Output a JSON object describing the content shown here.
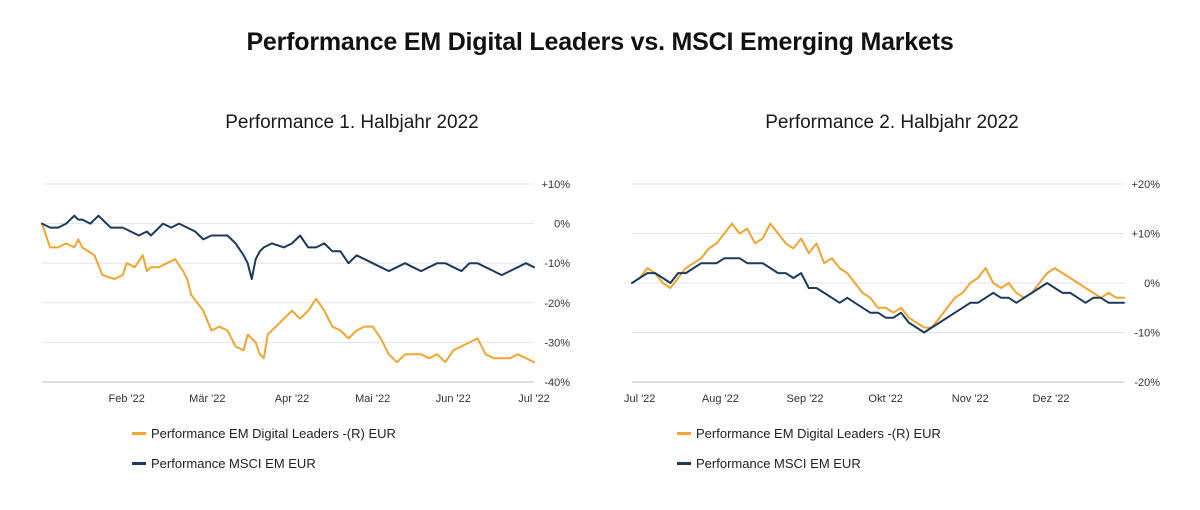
{
  "title": "Performance EM Digital Leaders vs. MSCI Emerging Markets",
  "colors": {
    "em_digital": "#f0a630",
    "msci": "#1b3a5e",
    "grid": "#e3e3e3"
  },
  "legend": [
    {
      "label": "Performance EM Digital Leaders -(R) EUR"
    },
    {
      "label": "Performance MSCI EM EUR"
    }
  ],
  "chart_data": [
    {
      "type": "line",
      "title": "Performance 1. Halbjahr 2022",
      "x_tick_labels": [
        "Feb '22",
        "Mär '22",
        "Apr '22",
        "Mai '22",
        "Jun '22",
        "Jul '22"
      ],
      "x_tick_positions": [
        21,
        41,
        62,
        82,
        102,
        122
      ],
      "xlim": [
        0,
        122
      ],
      "y_tick_labels": [
        "+10%",
        "0%",
        "-10%",
        "-20%",
        "-30%",
        "-40%"
      ],
      "y_tick_values": [
        10,
        0,
        -10,
        -20,
        -30,
        -40
      ],
      "ylim": [
        -40,
        10
      ],
      "y_axis_side": "right",
      "grid": true,
      "series": [
        {
          "name": "Performance EM Digital Leaders -(R) EUR",
          "x": [
            0,
            2,
            4,
            6,
            8,
            9,
            10,
            13,
            15,
            18,
            20,
            21,
            23,
            25,
            26,
            27,
            29,
            31,
            33,
            35,
            36,
            37,
            40,
            42,
            44,
            46,
            48,
            50,
            51,
            53,
            54,
            55,
            56,
            58,
            60,
            62,
            64,
            66,
            68,
            70,
            72,
            74,
            76,
            78,
            80,
            82,
            84,
            86,
            88,
            90,
            92,
            94,
            96,
            98,
            100,
            102,
            104,
            106,
            108,
            110,
            112,
            114,
            116,
            118,
            120,
            122
          ],
          "y": [
            0,
            -6,
            -6,
            -5,
            -6,
            -4,
            -6,
            -8,
            -13,
            -14,
            -13,
            -10,
            -11,
            -8,
            -12,
            -11,
            -11,
            -10,
            -9,
            -12,
            -14,
            -18,
            -22,
            -27,
            -26,
            -27,
            -31,
            -32,
            -28,
            -30,
            -33,
            -34,
            -28,
            -26,
            -24,
            -22,
            -24,
            -22,
            -19,
            -22,
            -26,
            -27,
            -29,
            -27,
            -26,
            -26,
            -29,
            -33,
            -35,
            -33,
            -33,
            -33,
            -34,
            -33,
            -35,
            -32,
            -31,
            -30,
            -29,
            -33,
            -34,
            -34,
            -34,
            -33,
            -34,
            -35
          ]
        },
        {
          "name": "Performance MSCI EM EUR",
          "x": [
            0,
            2,
            4,
            6,
            8,
            9,
            10,
            12,
            14,
            15,
            17,
            18,
            20,
            22,
            24,
            26,
            27,
            29,
            30,
            32,
            34,
            36,
            38,
            40,
            42,
            44,
            46,
            48,
            50,
            51,
            52,
            53,
            54,
            55,
            57,
            60,
            62,
            64,
            66,
            68,
            70,
            72,
            74,
            76,
            78,
            80,
            82,
            84,
            86,
            88,
            90,
            92,
            94,
            96,
            98,
            100,
            102,
            104,
            106,
            108,
            110,
            112,
            114,
            116,
            118,
            120,
            122
          ],
          "y": [
            0,
            -1,
            -1,
            0,
            2,
            1,
            1,
            0,
            2,
            1,
            -1,
            -1,
            -1,
            -2,
            -3,
            -2,
            -3,
            -1,
            0,
            -1,
            0,
            -1,
            -2,
            -4,
            -3,
            -3,
            -3,
            -5,
            -8,
            -10,
            -14,
            -9,
            -7,
            -6,
            -5,
            -6,
            -5,
            -3,
            -6,
            -6,
            -5,
            -7,
            -7,
            -10,
            -8,
            -9,
            -10,
            -11,
            -12,
            -11,
            -10,
            -11,
            -12,
            -11,
            -10,
            -10,
            -11,
            -12,
            -10,
            -10,
            -11,
            -12,
            -13,
            -12,
            -11,
            -10,
            -11
          ]
        }
      ]
    },
    {
      "type": "line",
      "title": "Performance 2. Halbjahr 2022",
      "x_tick_labels": [
        "Jul '22",
        "Aug '22",
        "Sep '22",
        "Okt '22",
        "Nov '22",
        "Dez '22"
      ],
      "x_tick_positions": [
        2,
        23,
        45,
        66,
        88,
        109
      ],
      "xlim": [
        0,
        128
      ],
      "y_tick_labels": [
        "+20%",
        "+10%",
        "0%",
        "-10%",
        "-20%"
      ],
      "y_tick_values": [
        20,
        10,
        0,
        -10,
        -20
      ],
      "ylim": [
        -20,
        20
      ],
      "y_axis_side": "right",
      "grid": true,
      "series": [
        {
          "name": "Performance EM Digital Leaders -(R) EUR",
          "x": [
            0,
            2,
            4,
            6,
            8,
            10,
            12,
            14,
            16,
            18,
            20,
            22,
            24,
            26,
            28,
            30,
            32,
            34,
            36,
            38,
            40,
            42,
            44,
            46,
            48,
            50,
            52,
            54,
            56,
            58,
            60,
            62,
            64,
            66,
            68,
            70,
            72,
            74,
            76,
            78,
            80,
            82,
            84,
            86,
            88,
            90,
            92,
            94,
            96,
            98,
            100,
            102,
            104,
            106,
            108,
            110,
            112,
            114,
            116,
            118,
            120,
            122,
            124,
            126,
            128
          ],
          "y": [
            0,
            1,
            3,
            2,
            0,
            -1,
            1,
            3,
            4,
            5,
            7,
            8,
            10,
            12,
            10,
            11,
            8,
            9,
            12,
            10,
            8,
            7,
            9,
            6,
            8,
            4,
            5,
            3,
            2,
            0,
            -2,
            -3,
            -5,
            -5,
            -6,
            -5,
            -7,
            -8,
            -9,
            -9,
            -7,
            -5,
            -3,
            -2,
            0,
            1,
            3,
            0,
            -1,
            0,
            -2,
            -3,
            -2,
            0,
            2,
            3,
            2,
            1,
            0,
            -1,
            -2,
            -3,
            -2,
            -3,
            -3
          ]
        },
        {
          "name": "Performance MSCI EM EUR",
          "x": [
            0,
            2,
            4,
            6,
            8,
            10,
            12,
            14,
            16,
            18,
            20,
            22,
            24,
            26,
            28,
            30,
            32,
            34,
            36,
            38,
            40,
            42,
            44,
            46,
            48,
            50,
            52,
            54,
            56,
            58,
            60,
            62,
            64,
            66,
            68,
            70,
            72,
            74,
            76,
            78,
            80,
            82,
            84,
            86,
            88,
            90,
            92,
            94,
            96,
            98,
            100,
            102,
            104,
            106,
            108,
            110,
            112,
            114,
            116,
            118,
            120,
            122,
            124,
            126,
            128
          ],
          "y": [
            0,
            1,
            2,
            2,
            1,
            0,
            2,
            2,
            3,
            4,
            4,
            4,
            5,
            5,
            5,
            4,
            4,
            4,
            3,
            2,
            2,
            1,
            2,
            -1,
            -1,
            -2,
            -3,
            -4,
            -3,
            -4,
            -5,
            -6,
            -6,
            -7,
            -7,
            -6,
            -8,
            -9,
            -10,
            -9,
            -8,
            -7,
            -6,
            -5,
            -4,
            -4,
            -3,
            -2,
            -3,
            -3,
            -4,
            -3,
            -2,
            -1,
            0,
            -1,
            -2,
            -2,
            -3,
            -4,
            -3,
            -3,
            -4,
            -4,
            -4
          ]
        }
      ]
    }
  ]
}
